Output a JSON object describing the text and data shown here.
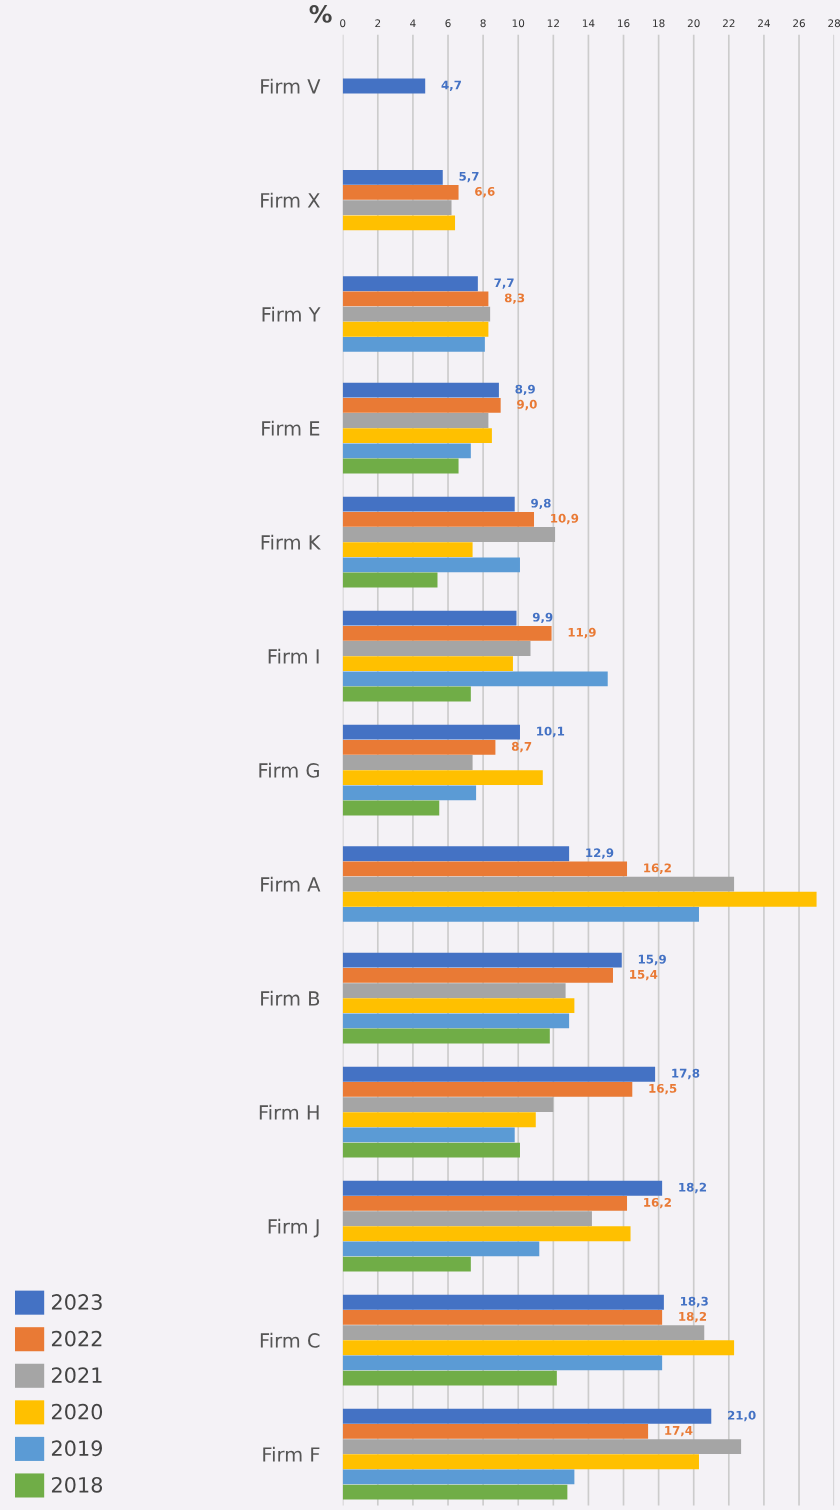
{
  "chart_data": {
    "type": "bar",
    "orientation": "horizontal",
    "xlabel": "%",
    "categories": [
      "Firm V",
      "Firm X",
      "Firm Y",
      "Firm E",
      "Firm K",
      "Firm I",
      "Firm G",
      "Firm A",
      "Firm B",
      "Firm H",
      "Firm J",
      "Firm C",
      "Firm F"
    ],
    "series": [
      {
        "name": "2023",
        "color": "#4472c4",
        "values": [
          4.7,
          5.7,
          7.7,
          8.9,
          9.8,
          9.9,
          10.1,
          12.9,
          15.9,
          17.8,
          18.2,
          18.3,
          21.0
        ],
        "value_labels": [
          "4,7",
          "5,7",
          "7,7",
          "8,9",
          "9,8",
          "9,9",
          "10,1",
          "12,9",
          "15,9",
          "17,8",
          "18,2",
          "18,3",
          "21,0"
        ]
      },
      {
        "name": "2022",
        "color": "#e97a35",
        "values": [
          null,
          6.6,
          8.3,
          9.0,
          10.9,
          11.9,
          8.7,
          16.2,
          15.4,
          16.5,
          16.2,
          18.2,
          17.4
        ],
        "value_labels": [
          null,
          "6,6",
          "8,3",
          "9,0",
          "10,9",
          "11,9",
          "8,7",
          "16,2",
          "15,4",
          "16,5",
          "16,2",
          "18,2",
          "17,4"
        ]
      },
      {
        "name": "2021",
        "color": "#a5a5a5",
        "values": [
          null,
          6.2,
          8.4,
          8.3,
          12.1,
          10.7,
          7.4,
          22.3,
          12.7,
          12.0,
          14.2,
          20.6,
          22.7
        ]
      },
      {
        "name": "2020",
        "color": "#ffc000",
        "values": [
          null,
          6.4,
          8.3,
          8.5,
          7.4,
          9.7,
          11.4,
          27.0,
          13.2,
          11.0,
          16.4,
          22.3,
          20.3
        ]
      },
      {
        "name": "2019",
        "color": "#5b9bd5",
        "values": [
          null,
          null,
          8.1,
          7.3,
          10.1,
          15.1,
          7.6,
          20.3,
          12.9,
          9.8,
          11.2,
          18.2,
          13.2
        ]
      },
      {
        "name": "2018",
        "color": "#70ad47",
        "values": [
          null,
          null,
          null,
          6.6,
          5.4,
          7.3,
          5.5,
          null,
          11.8,
          10.1,
          7.3,
          12.2,
          12.8
        ]
      }
    ],
    "xlim": [
      0,
      28
    ],
    "xticks": [
      0,
      2,
      4,
      6,
      8,
      10,
      12,
      14,
      16,
      18,
      20,
      22,
      24,
      26,
      28
    ],
    "grid": "x",
    "legend": "bottom left"
  }
}
